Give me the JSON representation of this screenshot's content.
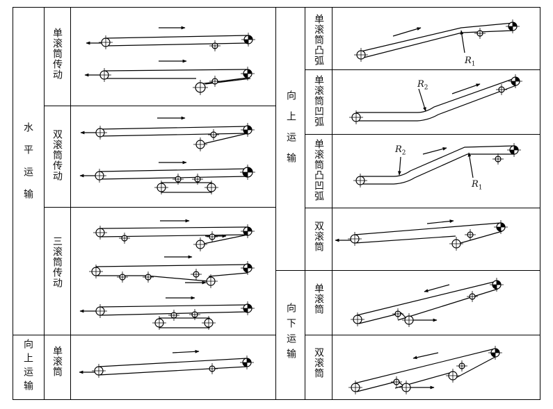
{
  "sections": {
    "horizontal": "水平运输",
    "upward_left": "向上运输",
    "upward_right": "向上运输",
    "downward": "向下运输"
  },
  "rows": {
    "single_drive": "单滚筒传动",
    "double_drive": "双滚筒传动",
    "triple_drive": "三滚筒传动",
    "single_up": "单滚筒",
    "convex": "单滚筒凸弧",
    "concave": "单滚筒凹弧",
    "convex_concave": "单滚筒凸凹弧",
    "double_up": "双滚筒",
    "single_down": "单滚筒",
    "double_down": "双滚筒"
  },
  "curve_labels": {
    "convex_r1": {
      "letter": "R",
      "sub": "1"
    },
    "concave_r2": {
      "letter": "R",
      "sub": "2"
    },
    "cc_r2": {
      "letter": "R",
      "sub": "2"
    },
    "cc_r1": {
      "letter": "R",
      "sub": "1"
    }
  }
}
